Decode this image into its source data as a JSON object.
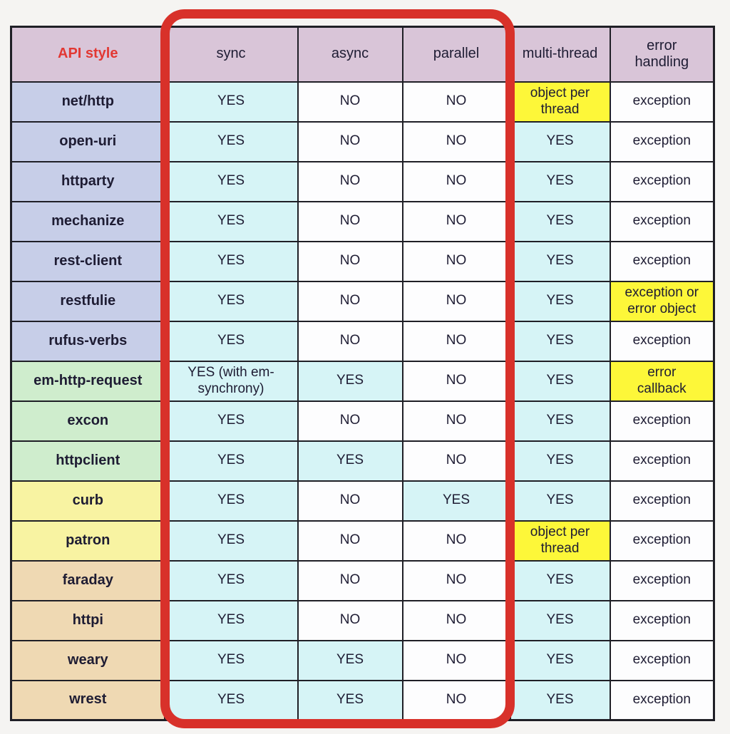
{
  "chart_data": {
    "type": "table",
    "title": "",
    "columns": [
      "API style",
      "sync",
      "async",
      "parallel",
      "multi-thread",
      "error\nhandling"
    ],
    "rows": [
      [
        "net/http",
        "YES",
        "NO",
        "NO",
        "object per\nthread",
        "exception"
      ],
      [
        "open-uri",
        "YES",
        "NO",
        "NO",
        "YES",
        "exception"
      ],
      [
        "httparty",
        "YES",
        "NO",
        "NO",
        "YES",
        "exception"
      ],
      [
        "mechanize",
        "YES",
        "NO",
        "NO",
        "YES",
        "exception"
      ],
      [
        "rest-client",
        "YES",
        "NO",
        "NO",
        "YES",
        "exception"
      ],
      [
        "restfulie",
        "YES",
        "NO",
        "NO",
        "YES",
        "exception or\nerror object"
      ],
      [
        "rufus-verbs",
        "YES",
        "NO",
        "NO",
        "YES",
        "exception"
      ],
      [
        "em-http-request",
        "YES (with em-\nsynchrony)",
        "YES",
        "NO",
        "YES",
        "error\ncallback"
      ],
      [
        "excon",
        "YES",
        "NO",
        "NO",
        "YES",
        "exception"
      ],
      [
        "httpclient",
        "YES",
        "YES",
        "NO",
        "YES",
        "exception"
      ],
      [
        "curb",
        "YES",
        "NO",
        "YES",
        "YES",
        "exception"
      ],
      [
        "patron",
        "YES",
        "NO",
        "NO",
        "object per\nthread",
        "exception"
      ],
      [
        "faraday",
        "YES",
        "NO",
        "NO",
        "YES",
        "exception"
      ],
      [
        "httpi",
        "YES",
        "NO",
        "NO",
        "YES",
        "exception"
      ],
      [
        "weary",
        "YES",
        "YES",
        "NO",
        "YES",
        "exception"
      ],
      [
        "wrest",
        "YES",
        "YES",
        "NO",
        "YES",
        "exception"
      ]
    ],
    "legend": "red rounded rectangle highlights the sync, async and parallel columns",
    "grid": true
  },
  "styles": {
    "palette": {
      "header": "#d9c5d8",
      "blue": "#c7cee8",
      "green": "#cfedcd",
      "row_yellow": "#f8f3a2",
      "tan": "#efd9b3",
      "cyan": "#d6f4f6",
      "highlight_yellow": "#fdf739",
      "white": "#fdfdfe",
      "api_style_text": "#e23833",
      "text": "#1e1c33",
      "border": "#1f1f26",
      "highlight_ring": "#d8312a",
      "page_bg": "#f5f4f2"
    },
    "row_label_bg": [
      "blue",
      "blue",
      "blue",
      "blue",
      "blue",
      "blue",
      "blue",
      "green",
      "green",
      "green",
      "row_yellow",
      "row_yellow",
      "tan",
      "tan",
      "tan",
      "tan"
    ],
    "cell_bg_matrix": [
      [
        "cyan",
        "white",
        "white",
        "highlight_yellow",
        "white"
      ],
      [
        "cyan",
        "white",
        "white",
        "cyan",
        "white"
      ],
      [
        "cyan",
        "white",
        "white",
        "cyan",
        "white"
      ],
      [
        "cyan",
        "white",
        "white",
        "cyan",
        "white"
      ],
      [
        "cyan",
        "white",
        "white",
        "cyan",
        "white"
      ],
      [
        "cyan",
        "white",
        "white",
        "cyan",
        "highlight_yellow"
      ],
      [
        "cyan",
        "white",
        "white",
        "cyan",
        "white"
      ],
      [
        "cyan",
        "cyan",
        "white",
        "cyan",
        "highlight_yellow"
      ],
      [
        "cyan",
        "white",
        "white",
        "cyan",
        "white"
      ],
      [
        "cyan",
        "cyan",
        "white",
        "cyan",
        "white"
      ],
      [
        "cyan",
        "white",
        "cyan",
        "cyan",
        "white"
      ],
      [
        "cyan",
        "white",
        "white",
        "highlight_yellow",
        "white"
      ],
      [
        "cyan",
        "white",
        "white",
        "cyan",
        "white"
      ],
      [
        "cyan",
        "white",
        "white",
        "cyan",
        "white"
      ],
      [
        "cyan",
        "cyan",
        "white",
        "cyan",
        "white"
      ],
      [
        "cyan",
        "cyan",
        "white",
        "cyan",
        "white"
      ]
    ]
  }
}
